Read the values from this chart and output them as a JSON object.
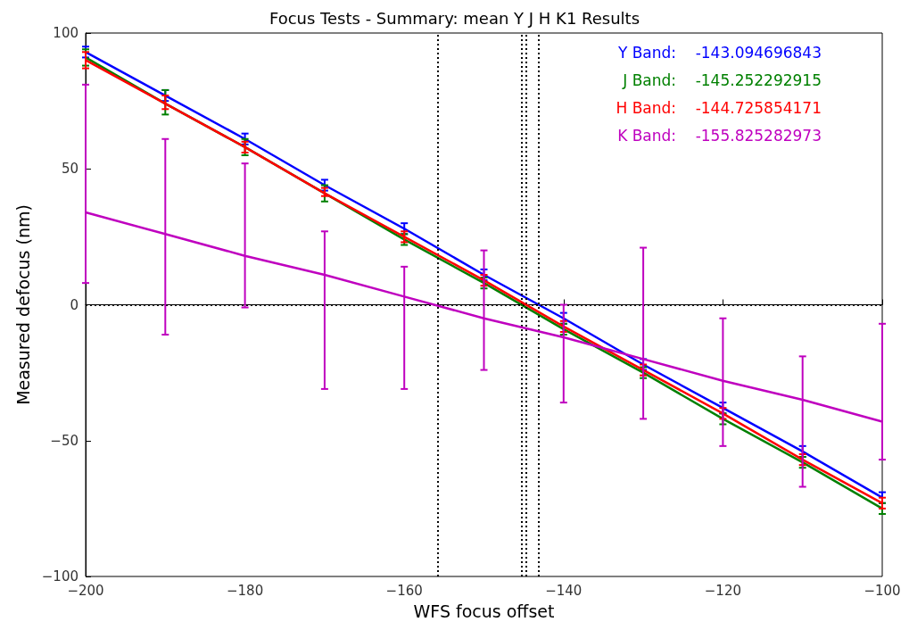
{
  "chart_data": {
    "type": "line",
    "title": "Focus Tests - Summary: mean Y J H K1 Results",
    "xlabel": "WFS focus offset",
    "ylabel": "Measured defocus (nm)",
    "x": [
      -200,
      -190,
      -180,
      -170,
      -160,
      -150,
      -140,
      -130,
      -120,
      -110,
      -100
    ],
    "series": [
      {
        "color": "#0000ff",
        "values": [
          93,
          77,
          61,
          44,
          28,
          11,
          -5,
          -22,
          -38,
          -54,
          -71
        ],
        "errors": [
          2,
          2,
          2,
          2,
          2,
          2,
          2,
          2,
          2,
          2,
          2
        ]
      },
      {
        "color": "#008000",
        "values": [
          91,
          74,
          58,
          41,
          24,
          8,
          -9,
          -25,
          -42,
          -58,
          -75
        ],
        "errors": [
          3,
          [
            70,
            79
          ],
          3,
          [
            38,
            44
          ],
          2,
          2,
          2,
          2,
          2,
          2,
          2
        ]
      },
      {
        "color": "#ff0000",
        "values": [
          90,
          74,
          58,
          41,
          25,
          9,
          -8,
          -24,
          -40,
          -57,
          -73
        ],
        "errors": [
          3,
          [
            72,
            77
          ],
          2,
          [
            40,
            43
          ],
          2,
          2,
          2,
          2,
          2,
          2,
          2
        ]
      },
      {
        "color": "#bf00bf",
        "values": [
          34,
          26,
          18,
          11,
          3,
          -5,
          -12,
          -20,
          -28,
          -35,
          -43
        ],
        "errors": [
          [
            8,
            81
          ],
          [
            -11,
            61
          ],
          [
            -1,
            52
          ],
          [
            -31,
            27
          ],
          [
            -31,
            14
          ],
          [
            -24,
            20
          ],
          [
            -36,
            0
          ],
          [
            -42,
            21
          ],
          [
            -52,
            -5
          ],
          [
            -67,
            -19
          ],
          [
            -57,
            -7
          ]
        ]
      }
    ],
    "annotations": [
      "Y Band:    -143.094696843",
      "J Band:    -145.252292915",
      "H Band:    -144.725854171",
      "K Band:    -155.825282973"
    ],
    "ref_lines": [
      {
        "axis": "y",
        "value": 0,
        "color": "#000000",
        "line_style": "dotted"
      },
      {
        "axis": "x",
        "value": -155.83,
        "color": "#000000",
        "line_style": "dotted"
      },
      {
        "axis": "x",
        "value": -145.25,
        "color": "#000000",
        "line_style": "dotted"
      },
      {
        "axis": "x",
        "value": -144.73,
        "color": "#000000",
        "line_style": "dotted"
      },
      {
        "axis": "x",
        "value": -143.09,
        "color": "#000000",
        "line_style": "dotted"
      }
    ],
    "xlim": [
      -200,
      -100
    ],
    "xticks": [
      -200,
      -180,
      -160,
      -140,
      -120,
      -100
    ],
    "ylim": [
      -100,
      100
    ],
    "yticks": [
      -100,
      -50,
      0,
      50,
      100
    ],
    "grid": false,
    "marker": "none",
    "line_style": "solid"
  }
}
